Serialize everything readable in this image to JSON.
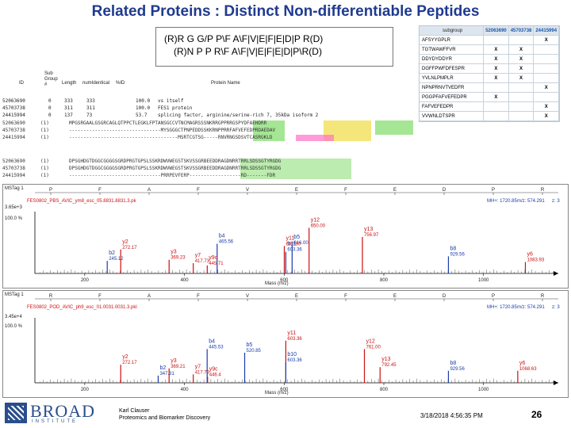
{
  "title": "Related Proteins : Distinct Non-differentiable Peptides",
  "sequence_box": {
    "line1": "(R)R G G/P P\\F A\\F|V|E|F|E|D|P R(D)",
    "line2": "(R)N P P R\\F A\\F|V|E|F|E|D|P\\R(D)"
  },
  "protein_table": {
    "headers": {
      "id": "ID",
      "subgroup": "Sub\nGroup\n#",
      "length": "Length",
      "numidentical": "numIdentical",
      "pct": "%ID",
      "name": "Protein Name"
    },
    "rows": [
      {
        "id": "52063690",
        "sub": "0",
        "length": "333",
        "ident": "333",
        "pct": "100.0",
        "name": "vs itself"
      },
      {
        "id": "45703738",
        "sub": "0",
        "length": "311",
        "ident": "311",
        "pct": "100.0",
        "name": "FES1 protein"
      },
      {
        "id": "24415994",
        "sub": "0",
        "length": "137",
        "ident": "73",
        "pct": "53.7",
        "name": "splicing factor, arginine/serine-rich 7, 35kDa isoform 2"
      }
    ]
  },
  "alignment_block1": [
    {
      "id": "52063690",
      "ct": "(1)",
      "seq": "MPGSRGAALGSGRCAGLQTPPCTLEGKLFPTANSGCCVTNCMAGRSSSNKRRGPPRRGSPYDFAEHDRR"
    },
    {
      "id": "45703738",
      "ct": "(1)",
      "seq": "--------------------------------MYSGGGCTPNPEDDSSKKRNPPRRFAFVEFEDPRDAEDAV"
    },
    {
      "id": "24415994",
      "ct": "(1)",
      "seq": "--------------------------------------MSRTCGTSG-----RNVRNGSDSVTCASRGKLD"
    }
  ],
  "alignment_block2": [
    {
      "id": "52063690",
      "ct": "(1)",
      "seq": "DPSGHDGTDGGCGGGGSGRDPRGTGPSLSSKRDWVWEGSTSKVSSGRBEEDDRAGDNRRTRRLSDSSGTYRGDG"
    },
    {
      "id": "45703738",
      "ct": "(1)",
      "seq": "DPSGHDGTDGGCGGGGSGRDPRGTGPSLSSKRDWVWEGSTSKVSSGRBEEDDRAGDNRRTRRLSDSSGTYRGDG"
    },
    {
      "id": "24415994",
      "ct": "(1)",
      "seq": "--------------------------------PRRPEVFERP------------------RD-------FDR"
    }
  ],
  "peptide_grid": {
    "header": {
      "label": "subgroup",
      "col1": "52063690",
      "col2": "45703738",
      "col3": "24415994"
    },
    "rows": [
      {
        "pep": "AFSYYGPLR",
        "c1": "",
        "c2": "",
        "c3": "X"
      },
      {
        "pep": "TGTWAWFFVR",
        "c1": "X",
        "c2": "X",
        "c3": ""
      },
      {
        "pep": "DDYDYDDYR",
        "c1": "X",
        "c2": "X",
        "c3": ""
      },
      {
        "pep": "DGFFPWFDFESPR",
        "c1": "X",
        "c2": "X",
        "c3": ""
      },
      {
        "pep": "YVLNLPMPLR",
        "c1": "X",
        "c2": "X",
        "c3": ""
      },
      {
        "pep": "NPNPRNVTVEDFR",
        "c1": "",
        "c2": "",
        "c3": "X"
      },
      {
        "pep": "PGGPFAFVEFEDPR",
        "c1": "X",
        "c2": "",
        "c3": ""
      },
      {
        "pep": "FAFVEFEDPR",
        "c1": "",
        "c2": "",
        "c3": "X"
      },
      {
        "pep": "VVWNLDTSPR",
        "c1": "",
        "c2": "",
        "c3": "X"
      }
    ]
  },
  "spectrum1": {
    "tag": "MSTag 1",
    "file": "FES0802_PBS_AVIC_ym8_esc_05.8831.8831.3.pk",
    "mh": "MH+: 1720.85",
    "mz": "m/z: 574.291",
    "z": "z: 3",
    "ylabel_top": "3.65e+3",
    "ylabel_pct": "100.0 %",
    "xlabel": "Mass (m/z)",
    "x_ticks": [
      "200",
      "400",
      "600",
      "800",
      "1000"
    ],
    "residues": [
      "P",
      "F",
      "A",
      "F",
      "V",
      "E",
      "F",
      "E",
      "D",
      "P",
      "R"
    ],
    "peaks": [
      {
        "label": "y2",
        "mz": "272.17",
        "intensity": 0.42
      },
      {
        "label": "b2",
        "mz": "245.12",
        "intensity": 0.22
      },
      {
        "label": "y3",
        "mz": "369.23",
        "intensity": 0.24
      },
      {
        "label": "b4",
        "mz": "465.56",
        "intensity": 0.52
      },
      {
        "label": "y7",
        "mz": "417.73",
        "intensity": 0.18
      },
      {
        "label": "y9c",
        "mz": "445.71",
        "intensity": 0.14
      },
      {
        "label": "b5",
        "mz": "616.00",
        "intensity": 0.5
      },
      {
        "label": "y11",
        "mz": "600.30",
        "intensity": 0.48
      },
      {
        "label": "y12",
        "mz": "650.00",
        "intensity": 0.8
      },
      {
        "label": "b11",
        "mz": "603.36",
        "intensity": 0.38
      },
      {
        "label": "y13",
        "mz": "756.97",
        "intensity": 0.64
      },
      {
        "label": "y6",
        "mz": "1083.93",
        "intensity": 0.2
      },
      {
        "label": "b8",
        "mz": "929.56",
        "intensity": 0.3
      }
    ]
  },
  "spectrum2": {
    "tag": "MSTag 1",
    "file": "FES0802_POD_AVIC_ph9_esc_01.0031.0031.3.pkl",
    "mh": "MH+: 1720.85",
    "mz": "m/z: 574.291",
    "z": "z: 3",
    "ylabel_top": "3.45e+4",
    "ylabel_pct": "100.0 %",
    "xlabel": "Mass (m/z)",
    "x_ticks": [
      "200",
      "400",
      "600",
      "800",
      "1000"
    ],
    "residues": [
      "R",
      "F",
      "A",
      "F",
      "V",
      "E",
      "F",
      "E",
      "D",
      "P",
      "R"
    ],
    "peaks": [
      {
        "label": "y2",
        "mz": "272.17",
        "intensity": 0.3
      },
      {
        "label": "b2",
        "mz": "347.31",
        "intensity": 0.12
      },
      {
        "label": "y3",
        "mz": "369.21",
        "intensity": 0.24
      },
      {
        "label": "b4",
        "mz": "445.53",
        "intensity": 0.56
      },
      {
        "label": "y7",
        "mz": "417.73",
        "intensity": 0.14
      },
      {
        "label": "y9c",
        "mz": "446.4",
        "intensity": 0.1
      },
      {
        "label": "b5",
        "mz": "520.85",
        "intensity": 0.5
      },
      {
        "label": "y11",
        "mz": "603.36",
        "intensity": 0.7
      },
      {
        "label": "b10",
        "mz": "603.36",
        "intensity": 0.34
      },
      {
        "label": "y12",
        "mz": "761.00",
        "intensity": 0.56
      },
      {
        "label": "y13",
        "mz": "792.45",
        "intensity": 0.26
      },
      {
        "label": "b8",
        "mz": "929.56",
        "intensity": 0.2
      },
      {
        "label": "y6",
        "mz": "1068.63",
        "intensity": 0.2
      }
    ]
  },
  "footer": {
    "logo_word": "BROAD",
    "logo_sub": "INSTITUTE",
    "presenter_name": "Karl Clauser",
    "presenter_dept": "Proteomics and Biomarker Discovery",
    "date": "3/18/2018 4:56:35 PM",
    "page": "26"
  }
}
